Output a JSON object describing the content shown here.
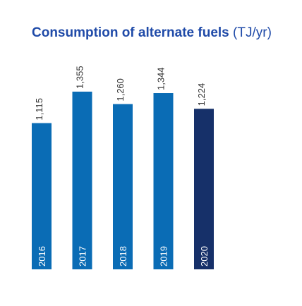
{
  "title": "Consumption of alternate fuels",
  "title_unit": "(TJ/yr)",
  "colors": {
    "title": "#1f4aa8",
    "bar": "#0a6cb5",
    "bar_highlight": "#163069",
    "bar_label": "#ffffff",
    "value_label": "#333333"
  },
  "chart_data": {
    "type": "bar",
    "title": "Consumption of alternate fuels (TJ/yr)",
    "categories": [
      "2016",
      "2017",
      "2018",
      "2019",
      "2020"
    ],
    "values": [
      1115,
      1355,
      1260,
      1344,
      1224
    ],
    "value_labels": [
      "1,115",
      "1,355",
      "1,260",
      "1,344",
      "1,224"
    ],
    "highlight_index": 4,
    "xlabel": "",
    "ylabel": "",
    "grid": false,
    "legend": "none"
  }
}
